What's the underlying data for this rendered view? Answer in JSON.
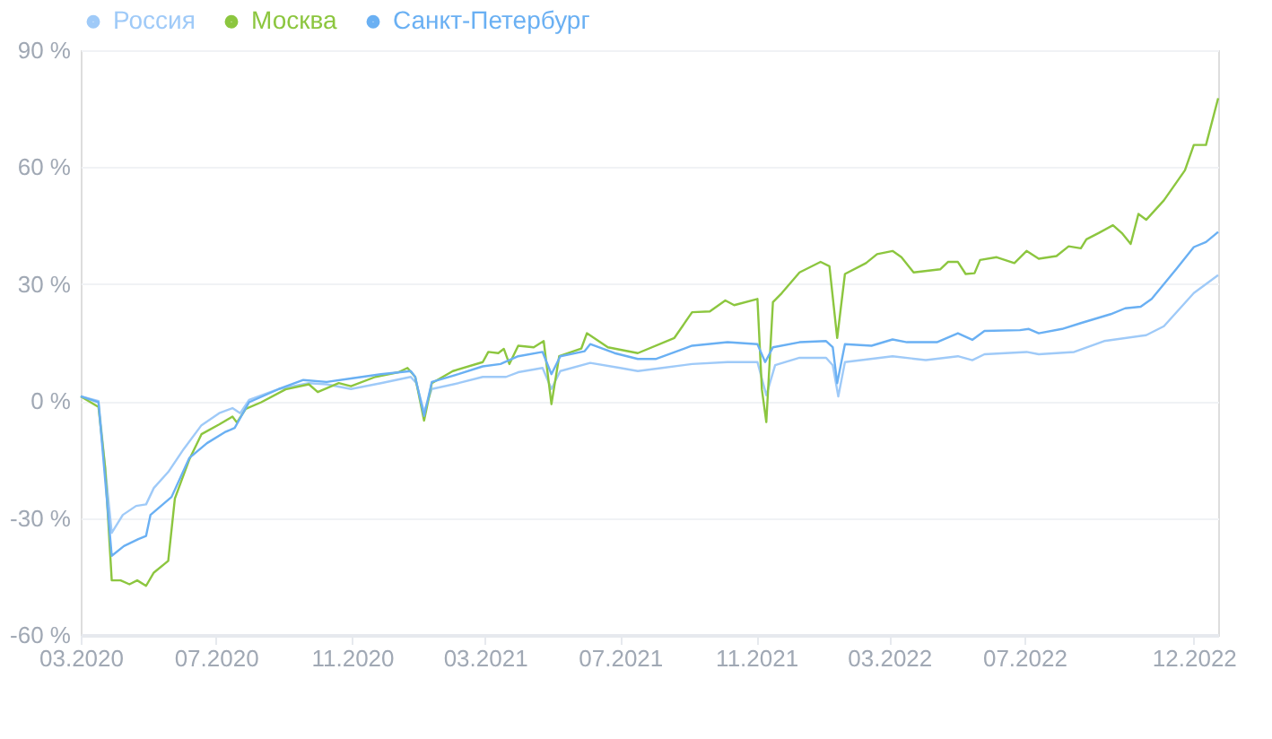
{
  "chart_data": {
    "type": "line",
    "legend": "top left",
    "grid": "y",
    "marker": "none",
    "line_style": "solid",
    "xlim": [
      "2020-03-01",
      "2022-12-23"
    ],
    "xticks": [
      {
        "value": "2020-03-01",
        "label": "03.2020"
      },
      {
        "value": "2020-07-01",
        "label": "07.2020"
      },
      {
        "value": "2020-11-01",
        "label": "11.2020"
      },
      {
        "value": "2021-03-01",
        "label": "03.2021"
      },
      {
        "value": "2021-07-01",
        "label": "07.2021"
      },
      {
        "value": "2021-11-01",
        "label": "11.2021"
      },
      {
        "value": "2022-03-01",
        "label": "03.2022"
      },
      {
        "value": "2022-07-01",
        "label": "07.2022"
      },
      {
        "value": "2022-12-01",
        "label": "12.2022"
      }
    ],
    "ylim": [
      -60,
      90
    ],
    "yticks": [
      {
        "value": -60,
        "label": "-60 %"
      },
      {
        "value": -30,
        "label": "-30 %"
      },
      {
        "value": 0,
        "label": "0 %"
      },
      {
        "value": 30,
        "label": "30 %"
      },
      {
        "value": 60,
        "label": "60 %"
      },
      {
        "value": 90,
        "label": "90 %"
      }
    ],
    "series": [
      {
        "name": "Россия",
        "color": "#9fcaf8",
        "x": [
          "2020-03-01",
          "2020-03-17",
          "2020-03-29",
          "2020-04-08",
          "2020-04-20",
          "2020-04-29",
          "2020-05-06",
          "2020-05-19",
          "2020-06-02",
          "2020-06-18",
          "2020-07-04",
          "2020-07-16",
          "2020-07-23",
          "2020-07-31",
          "2020-08-27",
          "2020-09-23",
          "2020-10-09",
          "2020-10-31",
          "2020-11-27",
          "2020-12-24",
          "2020-12-29",
          "2021-01-05",
          "2021-01-12",
          "2021-02-05",
          "2021-02-27",
          "2021-03-20",
          "2021-03-31",
          "2021-04-22",
          "2021-04-30",
          "2021-05-08",
          "2021-06-04",
          "2021-07-01",
          "2021-07-17",
          "2021-08-08",
          "2021-09-04",
          "2021-10-06",
          "2021-11-02",
          "2021-11-10",
          "2021-11-18",
          "2021-12-10",
          "2022-01-03",
          "2022-01-09",
          "2022-01-14",
          "2022-01-20",
          "2022-03-04",
          "2022-04-03",
          "2022-05-02",
          "2022-05-15",
          "2022-05-26",
          "2022-07-03",
          "2022-07-14",
          "2022-08-15",
          "2022-09-11",
          "2022-10-19",
          "2022-11-04",
          "2022-12-01",
          "2022-12-23"
        ],
        "values": [
          1.2,
          0,
          -33.8,
          -29.2,
          -26.9,
          -26.5,
          -22.3,
          -18.2,
          -12.3,
          -6.2,
          -3.1,
          -1.8,
          -3.1,
          0.3,
          3.1,
          4.6,
          4.3,
          3.1,
          4.6,
          6.2,
          4.6,
          -2.8,
          3.1,
          4.6,
          6.2,
          6.2,
          7.4,
          8.5,
          3.1,
          7.7,
          9.8,
          8.5,
          7.7,
          8.5,
          9.5,
          10,
          10,
          1.5,
          9.2,
          11.1,
          11.1,
          9.2,
          1.2,
          10,
          11.5,
          10.5,
          11.5,
          10.5,
          12,
          12.6,
          12,
          12.6,
          15.4,
          16.9,
          19.2,
          27.7,
          32.3
        ]
      },
      {
        "name": "Москва",
        "color": "#8cc63f",
        "x": [
          "2020-03-01",
          "2020-03-17",
          "2020-03-23",
          "2020-03-29",
          "2020-04-06",
          "2020-04-14",
          "2020-04-21",
          "2020-04-29",
          "2020-05-06",
          "2020-05-19",
          "2020-05-25",
          "2020-06-07",
          "2020-06-18",
          "2020-07-04",
          "2020-07-16",
          "2020-07-20",
          "2020-07-28",
          "2020-08-11",
          "2020-09-02",
          "2020-09-23",
          "2020-10-01",
          "2020-10-20",
          "2020-10-31",
          "2020-11-22",
          "2020-12-13",
          "2020-12-21",
          "2020-12-28",
          "2021-01-05",
          "2021-01-12",
          "2021-01-31",
          "2021-02-27",
          "2021-03-04",
          "2021-03-13",
          "2021-03-18",
          "2021-03-23",
          "2021-03-31",
          "2021-04-14",
          "2021-04-23",
          "2021-04-30",
          "2021-05-07",
          "2021-05-27",
          "2021-06-01",
          "2021-06-20",
          "2021-07-17",
          "2021-08-19",
          "2021-09-04",
          "2021-09-20",
          "2021-10-04",
          "2021-10-12",
          "2021-11-02",
          "2021-11-06",
          "2021-11-10",
          "2021-11-16",
          "2021-11-24",
          "2021-12-10",
          "2021-12-29",
          "2022-01-06",
          "2022-01-13",
          "2022-01-20",
          "2022-02-08",
          "2022-02-18",
          "2022-03-04",
          "2022-03-12",
          "2022-03-23",
          "2022-04-16",
          "2022-04-23",
          "2022-05-02",
          "2022-05-09",
          "2022-05-17",
          "2022-05-22",
          "2022-06-06",
          "2022-06-22",
          "2022-07-03",
          "2022-07-14",
          "2022-07-30",
          "2022-08-10",
          "2022-08-21",
          "2022-08-26",
          "2022-09-06",
          "2022-09-19",
          "2022-09-27",
          "2022-10-05",
          "2022-10-12",
          "2022-10-19",
          "2022-11-04",
          "2022-11-23",
          "2022-12-01",
          "2022-12-12",
          "2022-12-23"
        ],
        "values": [
          1.2,
          -1.5,
          -17,
          -46,
          -46,
          -47,
          -46,
          -47.4,
          -44,
          -41,
          -25,
          -15,
          -8.5,
          -6,
          -4,
          -5.5,
          -2,
          -0.3,
          3,
          4.3,
          2.3,
          4.6,
          3.8,
          6.2,
          7.4,
          8.5,
          6.2,
          -5,
          4.6,
          7.7,
          10,
          12.6,
          12.3,
          13.4,
          9.5,
          14.2,
          13.8,
          15.4,
          -0.8,
          11.5,
          13.5,
          17.4,
          13.8,
          12.3,
          16.2,
          22.8,
          23,
          25.8,
          24.6,
          26.2,
          3,
          -5.4,
          25.4,
          27.7,
          33,
          35.7,
          34.6,
          16.2,
          32.6,
          35.4,
          37.7,
          38.5,
          36.9,
          33,
          33.8,
          35.7,
          35.7,
          32.6,
          32.8,
          36.2,
          36.9,
          35.4,
          38.5,
          36.5,
          37.2,
          39.7,
          39.2,
          41.5,
          43.1,
          45.1,
          43.1,
          40.3,
          48,
          46.5,
          51.5,
          59.2,
          65.7,
          65.7,
          77.7
        ]
      },
      {
        "name": "Санкт-Петербург",
        "color": "#6ab0f3",
        "x": [
          "2020-03-01",
          "2020-03-17",
          "2020-03-29",
          "2020-04-09",
          "2020-04-22",
          "2020-04-29",
          "2020-05-03",
          "2020-05-22",
          "2020-06-07",
          "2020-06-23",
          "2020-07-09",
          "2020-07-18",
          "2020-07-31",
          "2020-08-27",
          "2020-09-18",
          "2020-10-09",
          "2020-10-31",
          "2020-11-27",
          "2020-12-24",
          "2020-12-28",
          "2021-01-05",
          "2021-01-12",
          "2021-02-05",
          "2021-02-27",
          "2021-03-15",
          "2021-03-31",
          "2021-04-22",
          "2021-04-30",
          "2021-05-08",
          "2021-05-30",
          "2021-06-04",
          "2021-06-26",
          "2021-07-17",
          "2021-08-02",
          "2021-09-04",
          "2021-10-06",
          "2021-11-02",
          "2021-11-09",
          "2021-11-16",
          "2021-12-10",
          "2022-01-03",
          "2022-01-09",
          "2022-01-13",
          "2022-01-20",
          "2022-02-13",
          "2022-03-04",
          "2022-03-17",
          "2022-04-13",
          "2022-05-02",
          "2022-05-15",
          "2022-05-26",
          "2022-06-27",
          "2022-07-05",
          "2022-07-14",
          "2022-08-04",
          "2022-08-21",
          "2022-09-17",
          "2022-09-30",
          "2022-10-14",
          "2022-10-24",
          "2022-11-15",
          "2022-12-01",
          "2022-12-12",
          "2022-12-23"
        ],
        "values": [
          1.2,
          -0.3,
          -39.7,
          -37.2,
          -35.4,
          -34.6,
          -29.2,
          -24.6,
          -14.6,
          -10.8,
          -8,
          -6.9,
          -0.3,
          3.1,
          5.4,
          4.9,
          5.8,
          6.9,
          7.7,
          6.2,
          -3.8,
          4.9,
          6.9,
          8.9,
          9.5,
          11.5,
          12.6,
          6.9,
          11.5,
          12.8,
          14.6,
          12.3,
          10.8,
          10.8,
          14.2,
          15.1,
          14.6,
          10,
          13.8,
          15.1,
          15.4,
          13.8,
          4.6,
          14.6,
          14.2,
          15.8,
          15.1,
          15.1,
          17.4,
          15.7,
          18,
          18.2,
          18.5,
          17.4,
          18.5,
          20,
          22.3,
          23.8,
          24.2,
          26.2,
          33.8,
          39.5,
          40.8,
          43.4
        ]
      }
    ]
  }
}
